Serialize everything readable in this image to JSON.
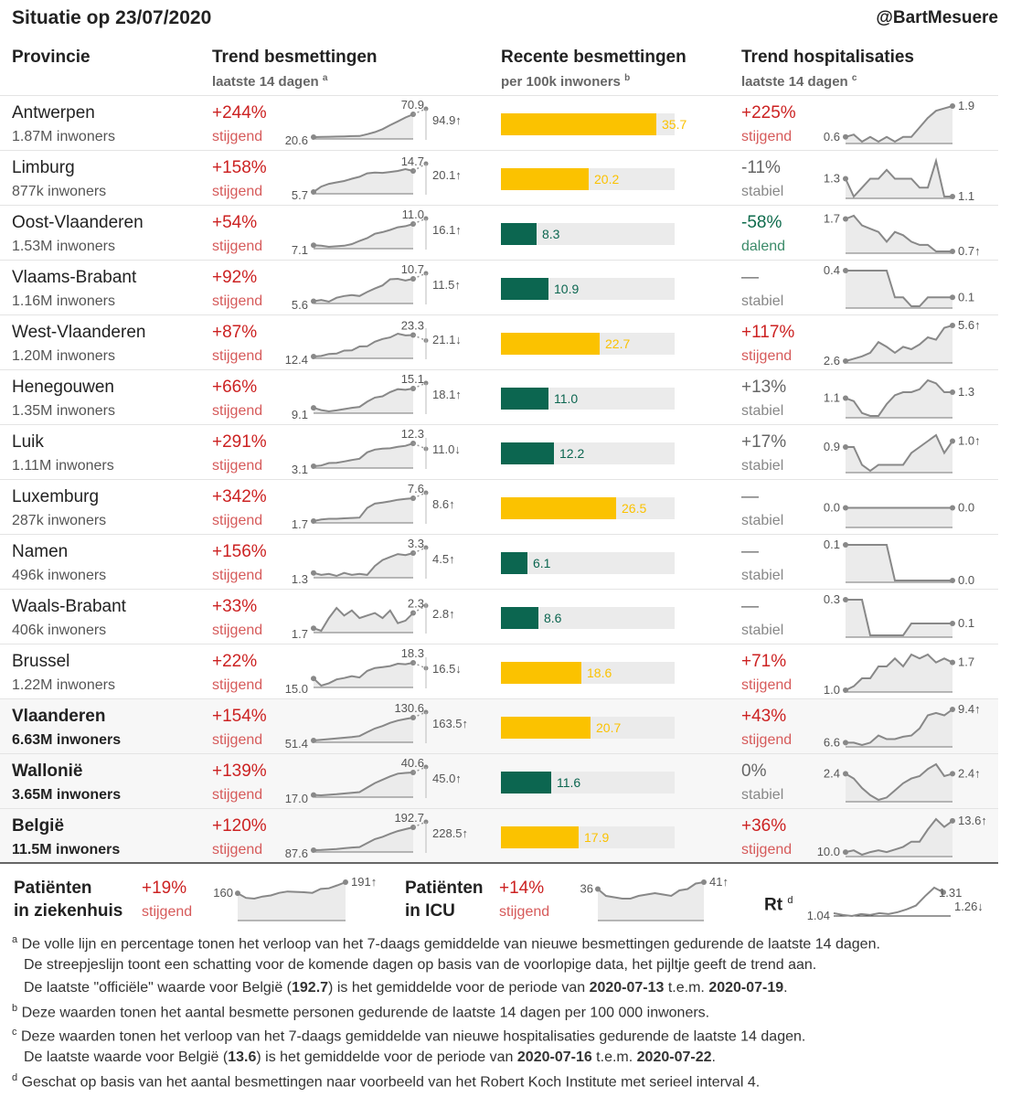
{
  "header": {
    "title": "Situatie op 23/07/2020",
    "handle": "@BartMesuere"
  },
  "columns": {
    "province": "Provincie",
    "trend_inf": "Trend besmettingen",
    "trend_inf_sub": "laatste 14 dagen",
    "trend_inf_note": "a",
    "recent": "Recente besmettingen",
    "recent_sub": "per 100k inwoners",
    "recent_note": "b",
    "trend_hosp": "Trend hospitalisaties",
    "trend_hosp_sub": "laatste 14 dagen",
    "trend_hosp_note": "c"
  },
  "colors": {
    "up": "#cc2222",
    "down": "#0e6b4c",
    "bar_yellow": "#fbc200",
    "bar_green": "#0c6650",
    "area": "#ebebeb",
    "line": "#888888"
  },
  "rows": [
    {
      "name": "Antwerpen",
      "pop": "1.87M inwoners",
      "inf_pct": "+244%",
      "inf_trend": "stijgend",
      "inf_start": "20.6",
      "inf_last": "70.9",
      "inf_proj": "94.9↑",
      "inf_series": [
        20.6,
        21.2,
        21.5,
        21.9,
        22.3,
        22.8,
        23.1,
        27.0,
        31.6,
        38.2,
        46.9,
        55.3,
        63.8,
        70.9
      ],
      "recent": "35.7",
      "recent_color": "yellow",
      "hosp_pct": "+225%",
      "hosp_trend": "stijgend",
      "hosp_dir": "up",
      "hosp_start": "0.6",
      "hosp_end": "1.9",
      "hosp_series": [
        0.6,
        0.7,
        0.4,
        0.6,
        0.4,
        0.6,
        0.4,
        0.6,
        0.6,
        1.0,
        1.4,
        1.7,
        1.8,
        1.9
      ]
    },
    {
      "name": "Limburg",
      "pop": "877k inwoners",
      "inf_pct": "+158%",
      "inf_trend": "stijgend",
      "inf_start": "5.7",
      "inf_last": "14.7",
      "inf_proj": "20.1↑",
      "inf_series": [
        5.7,
        8.0,
        9.2,
        9.8,
        10.4,
        11.4,
        12.2,
        13.7,
        14.0,
        13.9,
        14.3,
        14.7,
        15.5,
        14.7
      ],
      "recent": "20.2",
      "recent_color": "yellow",
      "hosp_pct": "-11%",
      "hosp_trend": "stabiel",
      "hosp_dir": "flat",
      "hosp_start": "1.3",
      "hosp_end": "1.1",
      "hosp_series": [
        1.3,
        1.1,
        1.2,
        1.3,
        1.3,
        1.4,
        1.3,
        1.3,
        1.3,
        1.2,
        1.2,
        1.5,
        1.1,
        1.1
      ]
    },
    {
      "name": "Oost-Vlaanderen",
      "pop": "1.53M inwoners",
      "inf_pct": "+54%",
      "inf_trend": "stijgend",
      "inf_start": "7.1",
      "inf_last": "11.0",
      "inf_proj": "16.1↑",
      "inf_series": [
        7.1,
        7.0,
        6.8,
        6.9,
        7.0,
        7.3,
        7.9,
        8.4,
        9.2,
        9.5,
        9.9,
        10.4,
        10.6,
        11.0
      ],
      "recent": "8.3",
      "recent_color": "green",
      "hosp_pct": "-58%",
      "hosp_trend": "dalend",
      "hosp_dir": "down",
      "hosp_start": "1.7",
      "hosp_end": "0.7↑",
      "hosp_series": [
        1.7,
        1.8,
        1.5,
        1.4,
        1.3,
        1.0,
        1.3,
        1.2,
        1.0,
        0.9,
        0.9,
        0.7,
        0.7,
        0.7
      ]
    },
    {
      "name": "Vlaams-Brabant",
      "pop": "1.16M inwoners",
      "inf_pct": "+92%",
      "inf_trend": "stijgend",
      "inf_start": "5.6",
      "inf_last": "10.7",
      "inf_proj": "11.5↑",
      "inf_series": [
        5.6,
        5.9,
        5.5,
        6.4,
        6.8,
        7.0,
        6.8,
        7.7,
        8.5,
        9.2,
        10.6,
        10.7,
        10.3,
        10.7
      ],
      "recent": "10.9",
      "recent_color": "green",
      "hosp_pct": "—",
      "hosp_trend": "stabiel",
      "hosp_dir": "flat",
      "hosp_start": "0.4",
      "hosp_end": "0.1",
      "hosp_series": [
        0.4,
        0.4,
        0.4,
        0.4,
        0.4,
        0.4,
        0.1,
        0.1,
        0.0,
        0.0,
        0.1,
        0.1,
        0.1,
        0.1
      ]
    },
    {
      "name": "West-Vlaanderen",
      "pop": "1.20M inwoners",
      "inf_pct": "+87%",
      "inf_trend": "stijgend",
      "inf_start": "12.4",
      "inf_last": "23.3",
      "inf_proj": "21.1↓",
      "inf_series": [
        12.4,
        12.7,
        13.7,
        13.9,
        15.4,
        15.5,
        17.5,
        17.6,
        19.9,
        21.3,
        22.1,
        24.0,
        23.1,
        23.3
      ],
      "recent": "22.7",
      "recent_color": "yellow",
      "hosp_pct": "+117%",
      "hosp_trend": "stijgend",
      "hosp_dir": "up",
      "hosp_start": "2.6",
      "hosp_end": "5.6↑",
      "hosp_series": [
        2.6,
        2.8,
        3.0,
        3.3,
        4.2,
        3.8,
        3.3,
        3.8,
        3.6,
        4.0,
        4.6,
        4.4,
        5.4,
        5.6
      ]
    },
    {
      "name": "Henegouwen",
      "pop": "1.35M inwoners",
      "inf_pct": "+66%",
      "inf_trend": "stijgend",
      "inf_start": "9.1",
      "inf_last": "15.1",
      "inf_proj": "18.1↑",
      "inf_series": [
        9.1,
        8.4,
        8.0,
        8.3,
        8.7,
        9.1,
        9.4,
        11.0,
        12.3,
        12.7,
        14.0,
        14.9,
        14.7,
        15.1
      ],
      "recent": "11.0",
      "recent_color": "green",
      "hosp_pct": "+13%",
      "hosp_trend": "stabiel",
      "hosp_dir": "flat",
      "hosp_start": "1.1",
      "hosp_end": "1.3",
      "hosp_series": [
        1.1,
        1.0,
        0.6,
        0.5,
        0.5,
        0.9,
        1.2,
        1.3,
        1.3,
        1.4,
        1.7,
        1.6,
        1.3,
        1.3
      ]
    },
    {
      "name": "Luik",
      "pop": "1.11M inwoners",
      "inf_pct": "+291%",
      "inf_trend": "stijgend",
      "inf_start": "3.1",
      "inf_last": "12.3",
      "inf_proj": "11.0↓",
      "inf_series": [
        3.1,
        3.4,
        4.4,
        4.5,
        5.0,
        5.6,
        6.1,
        8.7,
        9.8,
        10.2,
        10.3,
        10.9,
        11.3,
        12.3
      ],
      "recent": "12.2",
      "recent_color": "green",
      "hosp_pct": "+17%",
      "hosp_trend": "stabiel",
      "hosp_dir": "flat",
      "hosp_start": "0.9",
      "hosp_end": "1.0↑",
      "hosp_series": [
        0.9,
        0.9,
        0.6,
        0.5,
        0.6,
        0.6,
        0.6,
        0.6,
        0.8,
        0.9,
        1.0,
        1.1,
        0.8,
        1.0
      ]
    },
    {
      "name": "Luxemburg",
      "pop": "287k inwoners",
      "inf_pct": "+342%",
      "inf_trend": "stijgend",
      "inf_start": "1.7",
      "inf_last": "7.6",
      "inf_proj": "8.6↑",
      "inf_series": [
        1.7,
        2.1,
        2.3,
        2.3,
        2.4,
        2.5,
        2.6,
        5.1,
        6.2,
        6.5,
        6.8,
        7.2,
        7.4,
        7.6
      ],
      "recent": "26.5",
      "recent_color": "yellow",
      "hosp_pct": "—",
      "hosp_trend": "stabiel",
      "hosp_dir": "flat",
      "hosp_start": "0.0",
      "hosp_end": "0.0",
      "hosp_series": [
        0,
        0,
        0,
        0,
        0,
        0,
        0,
        0,
        0,
        0,
        0,
        0,
        0,
        0
      ]
    },
    {
      "name": "Namen",
      "pop": "496k inwoners",
      "inf_pct": "+156%",
      "inf_trend": "stijgend",
      "inf_start": "1.3",
      "inf_last": "3.3",
      "inf_proj": "4.5↑",
      "inf_series": [
        1.3,
        1.1,
        1.2,
        1.0,
        1.3,
        1.1,
        1.2,
        1.1,
        2.0,
        2.6,
        2.9,
        3.2,
        3.1,
        3.3
      ],
      "recent": "6.1",
      "recent_color": "green",
      "hosp_pct": "—",
      "hosp_trend": "stabiel",
      "hosp_dir": "flat",
      "hosp_start": "0.1",
      "hosp_end": "0.0",
      "hosp_series": [
        0.1,
        0.1,
        0.1,
        0.1,
        0.1,
        0.1,
        0,
        0,
        0,
        0,
        0,
        0,
        0,
        0
      ]
    },
    {
      "name": "Waals-Brabant",
      "pop": "406k inwoners",
      "inf_pct": "+33%",
      "inf_trend": "stijgend",
      "inf_start": "1.7",
      "inf_last": "2.3",
      "inf_proj": "2.8↑",
      "inf_series": [
        1.7,
        1.6,
        2.1,
        2.5,
        2.2,
        2.4,
        2.1,
        2.2,
        2.3,
        2.1,
        2.4,
        1.9,
        2.0,
        2.3
      ],
      "recent": "8.6",
      "recent_color": "green",
      "hosp_pct": "—",
      "hosp_trend": "stabiel",
      "hosp_dir": "flat",
      "hosp_start": "0.3",
      "hosp_end": "0.1",
      "hosp_series": [
        0.3,
        0.3,
        0.3,
        0.0,
        0.0,
        0.0,
        0.0,
        0.0,
        0.1,
        0.1,
        0.1,
        0.1,
        0.1,
        0.1
      ]
    },
    {
      "name": "Brussel",
      "pop": "1.22M inwoners",
      "inf_pct": "+22%",
      "inf_trend": "stijgend",
      "inf_start": "15.0",
      "inf_last": "18.3",
      "inf_proj": "16.5↓",
      "inf_series": [
        15.0,
        13.5,
        14.0,
        14.8,
        15.1,
        15.5,
        15.2,
        16.6,
        17.2,
        17.4,
        17.6,
        18.1,
        18.0,
        18.3
      ],
      "recent": "18.6",
      "recent_color": "yellow",
      "hosp_pct": "+71%",
      "hosp_trend": "stijgend",
      "hosp_dir": "up",
      "hosp_start": "1.0",
      "hosp_end": "1.7",
      "hosp_series": [
        1.0,
        1.1,
        1.3,
        1.3,
        1.6,
        1.6,
        1.8,
        1.6,
        1.9,
        1.8,
        1.9,
        1.7,
        1.8,
        1.7
      ]
    },
    {
      "name": "Vlaanderen",
      "pop": "6.63M inwoners",
      "agg": true,
      "inf_pct": "+154%",
      "inf_trend": "stijgend",
      "inf_start": "51.4",
      "inf_last": "130.6",
      "inf_proj": "163.5↑",
      "inf_series": [
        51.4,
        54.0,
        56.2,
        58.5,
        60.8,
        63.2,
        66.5,
        80.3,
        93.0,
        101.5,
        112.4,
        120.6,
        126.0,
        130.6
      ],
      "recent": "20.7",
      "recent_color": "yellow",
      "hosp_pct": "+43%",
      "hosp_trend": "stijgend",
      "hosp_dir": "up",
      "hosp_start": "6.6",
      "hosp_end": "9.4↑",
      "hosp_series": [
        6.6,
        6.6,
        6.4,
        6.6,
        7.2,
        6.9,
        6.9,
        7.1,
        7.2,
        7.8,
        8.9,
        9.1,
        8.9,
        9.4
      ]
    },
    {
      "name": "Wallonië",
      "pop": "3.65M inwoners",
      "agg": true,
      "inf_pct": "+139%",
      "inf_trend": "stijgend",
      "inf_start": "17.0",
      "inf_last": "40.6",
      "inf_proj": "45.0↑",
      "inf_series": [
        17.0,
        16.6,
        17.2,
        17.8,
        18.5,
        19.2,
        20.0,
        24.8,
        29.5,
        33.0,
        36.5,
        39.4,
        40.1,
        40.6
      ],
      "recent": "11.6",
      "recent_color": "green",
      "hosp_pct": "0%",
      "hosp_trend": "stabiel",
      "hosp_dir": "flat",
      "hosp_start": "2.4",
      "hosp_end": "2.4↑",
      "hosp_series": [
        2.4,
        2.2,
        1.8,
        1.5,
        1.3,
        1.4,
        1.7,
        2.0,
        2.2,
        2.3,
        2.6,
        2.8,
        2.3,
        2.4
      ]
    },
    {
      "name": "België",
      "pop": "11.5M inwoners",
      "agg": true,
      "inf_pct": "+120%",
      "inf_trend": "stijgend",
      "inf_start": "87.6",
      "inf_last": "192.7",
      "inf_proj": "228.5↑",
      "inf_series": [
        87.6,
        88.5,
        90.5,
        93.0,
        96.4,
        99.7,
        102.0,
        120.5,
        138.6,
        149.0,
        163.0,
        175.6,
        184.1,
        192.7
      ],
      "recent": "17.9",
      "recent_color": "yellow",
      "hosp_pct": "+36%",
      "hosp_trend": "stijgend",
      "hosp_dir": "up",
      "hosp_start": "10.0",
      "hosp_end": "13.6↑",
      "hosp_series": [
        10.0,
        10.2,
        9.7,
        10.0,
        10.2,
        10.0,
        10.3,
        10.6,
        11.2,
        11.2,
        12.6,
        13.8,
        12.9,
        13.6
      ]
    }
  ],
  "kpis": [
    {
      "label1": "Patiënten",
      "label2": "in ziekenhuis",
      "pct": "+19%",
      "trend": "stijgend",
      "start": "160",
      "end": "191↑",
      "series": [
        160,
        147,
        145,
        151,
        154,
        161,
        165,
        164,
        163,
        161,
        172,
        174,
        182,
        191
      ]
    },
    {
      "label1": "Patiënten",
      "label2": "in ICU",
      "pct": "+14%",
      "trend": "stijgend",
      "start": "36",
      "end": "41↑",
      "series": [
        36,
        31,
        30,
        29,
        29,
        31,
        32,
        33,
        32,
        31,
        35,
        36,
        40,
        41
      ]
    },
    {
      "label1": "Rt",
      "note": "d",
      "start": "1.04",
      "peak": "1.31",
      "end": "1.26↓",
      "series": [
        1.04,
        1.02,
        1.01,
        1.03,
        1.02,
        1.04,
        1.03,
        1.05,
        1.08,
        1.12,
        1.22,
        1.31,
        1.26
      ]
    }
  ],
  "footnotes": [
    {
      "mark": "a",
      "line": "De volle lijn en percentage tonen het verloop van het 7-daags gemiddelde van nieuwe besmettingen gedurende de laatste 14 dagen."
    },
    {
      "line": "De streepjeslijn toont een schatting voor de komende dagen op basis van de voorlopige data, het pijltje geeft de trend aan."
    },
    {
      "pre": "De laatste \"officiële\" waarde voor België (",
      "v1": "192.7",
      "mid": ") is het gemiddelde voor de periode van ",
      "v2": "2020-07-13",
      "mid2": " t.e.m. ",
      "v3": "2020-07-19",
      "post": "."
    },
    {
      "mark": "b",
      "line": "Deze waarden tonen het aantal besmette personen gedurende de laatste 14 dagen per 100 000 inwoners."
    },
    {
      "mark": "c",
      "line": "Deze waarden tonen het verloop van het 7-daags gemiddelde van nieuwe hospitalisaties gedurende de laatste 14 dagen."
    },
    {
      "pre": "De laatste waarde voor België (",
      "v1": "13.6",
      "mid": ") is het gemiddelde voor de periode van ",
      "v2": "2020-07-16",
      "mid2": " t.e.m. ",
      "v3": "2020-07-22",
      "post": "."
    },
    {
      "mark": "d",
      "line": "Geschat op basis van het aantal besmettingen naar voorbeeld van het Robert Koch Institute met serieel interval 4."
    }
  ],
  "chart_data": {
    "type": "table",
    "title": "Situatie op 23/07/2020",
    "columns": [
      "Provincie",
      "Trend besmettingen",
      "Recente besmettingen",
      "Trend hospitalisaties"
    ],
    "recent_per_100k": {
      "Antwerpen": 35.7,
      "Limburg": 20.2,
      "Oost-Vlaanderen": 8.3,
      "Vlaams-Brabant": 10.9,
      "West-Vlaanderen": 22.7,
      "Henegouwen": 11.0,
      "Luik": 12.2,
      "Luxemburg": 26.5,
      "Namen": 6.1,
      "Waals-Brabant": 8.6,
      "Brussel": 18.6,
      "Vlaanderen": 20.7,
      "Wallonië": 11.6,
      "België": 17.9
    },
    "bar_scale_max": 40
  }
}
